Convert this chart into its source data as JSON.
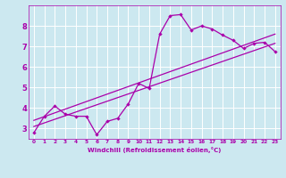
{
  "title": "",
  "xlabel": "Windchill (Refroidissement éolien,°C)",
  "bg_color": "#cce8f0",
  "line_color": "#aa00aa",
  "grid_color": "#ffffff",
  "xlim": [
    -0.5,
    23.5
  ],
  "ylim": [
    2.5,
    9.0
  ],
  "yticks": [
    3,
    4,
    5,
    6,
    7,
    8
  ],
  "xticks": [
    0,
    1,
    2,
    3,
    4,
    5,
    6,
    7,
    8,
    9,
    10,
    11,
    12,
    13,
    14,
    15,
    16,
    17,
    18,
    19,
    20,
    21,
    22,
    23
  ],
  "line1_x": [
    0,
    1,
    2,
    3,
    4,
    5,
    6,
    7,
    8,
    9,
    10,
    11,
    12,
    13,
    14,
    15,
    16,
    17,
    18,
    19,
    20,
    21,
    22,
    23
  ],
  "line1_y": [
    2.8,
    3.6,
    4.1,
    3.7,
    3.6,
    3.6,
    2.7,
    3.35,
    3.5,
    4.2,
    5.2,
    4.95,
    7.6,
    8.5,
    8.55,
    7.8,
    8.0,
    7.85,
    7.55,
    7.3,
    6.9,
    7.15,
    7.2,
    6.75
  ],
  "line2_x": [
    0,
    23
  ],
  "line2_y": [
    3.1,
    7.15
  ],
  "line3_x": [
    0,
    23
  ],
  "line3_y": [
    3.4,
    7.6
  ]
}
